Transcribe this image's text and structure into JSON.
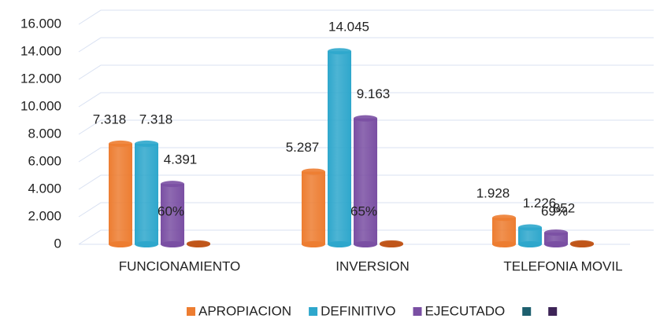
{
  "chart_data": {
    "type": "bar3d",
    "categories": [
      "FUNCIONAMIENTO",
      "INVERSION",
      "TELEFONIA MOVIL"
    ],
    "series": [
      {
        "name": "APROPIACION",
        "color": "#ed7d31",
        "values": [
          7318,
          5287,
          1928
        ],
        "value_labels": [
          "7.318",
          "5.287",
          "1.928"
        ]
      },
      {
        "name": "DEFINITIVO",
        "color": "#2ea7cc",
        "values": [
          7318,
          14045,
          1226
        ],
        "value_labels": [
          "7.318",
          "14.045",
          "1.226"
        ]
      },
      {
        "name": "EJECUTADO",
        "color": "#7a4fa3",
        "values": [
          4391,
          9163,
          852
        ],
        "value_labels": [
          "4.391",
          "9.163",
          "852"
        ]
      },
      {
        "name": null,
        "color": "#1d5f6e",
        "bar_color": "#c0561a",
        "values": [
          60,
          65,
          69
        ],
        "value_labels": [
          "60%",
          "65%",
          "69%"
        ]
      },
      {
        "name": null,
        "color": "#3d2457",
        "values": [
          null,
          null,
          null
        ]
      }
    ],
    "ylim": [
      0,
      16000
    ],
    "yticks": [
      0,
      {
        "value": 2000,
        "label": "2.000"
      },
      {
        "value": 4000,
        "label": "4.000"
      },
      {
        "value": 6000,
        "label": "6.000"
      },
      {
        "value": 8000,
        "label": "8.000"
      },
      {
        "value": 10000,
        "label": "10.000"
      },
      {
        "value": 12000,
        "label": "12.000"
      },
      {
        "value": 14000,
        "label": "14.000"
      },
      {
        "value": 16000,
        "label": "16.000"
      }
    ],
    "grid": true,
    "legend": "bottom"
  }
}
